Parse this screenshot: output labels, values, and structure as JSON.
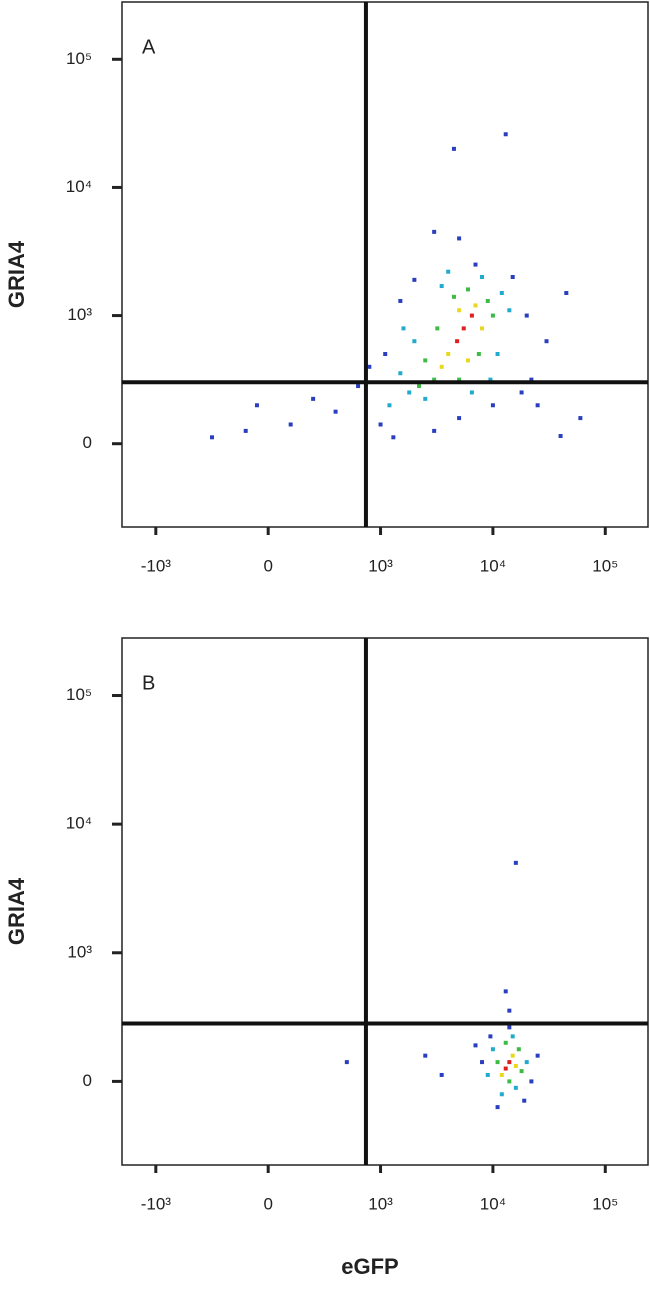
{
  "chart_data": [
    {
      "type": "scatter",
      "panel_label": "A",
      "y_label": "GRIA4",
      "xscale": "symlog",
      "yscale": "symlog",
      "xlim": [
        -2000,
        240000
      ],
      "ylim": [
        -650,
        280000
      ],
      "xticks": [
        {
          "value": -1000,
          "label": "-10³"
        },
        0,
        {
          "value": 1000,
          "label": "10³"
        },
        {
          "value": 10000,
          "label": "10⁴"
        },
        {
          "value": 100000,
          "label": "10⁵"
        }
      ],
      "yticks": [
        0,
        {
          "value": 1000,
          "label": "10³"
        },
        {
          "value": 10000,
          "label": "10⁴"
        },
        {
          "value": 100000,
          "label": "10⁵"
        }
      ],
      "gates": {
        "x": 870,
        "y": 480
      },
      "series": [
        {
          "color": "#2a3fbf",
          "x": [
            800,
            600,
            400,
            200,
            -200,
            -500,
            1000,
            1300,
            20000,
            30000,
            25000,
            60000,
            45000,
            3000,
            5000,
            4500,
            13000,
            1100,
            2000,
            7000,
            15000,
            900,
            3000,
            5000,
            10000,
            40000,
            18000,
            -100,
            1500,
            22000
          ],
          "y": [
            450,
            250,
            350,
            150,
            100,
            50,
            150,
            50,
            1000,
            800,
            300,
            200,
            1500,
            4500,
            4000,
            20000,
            26000,
            700,
            1900,
            2500,
            2000,
            600,
            100,
            200,
            300,
            60,
            400,
            300,
            1300,
            500
          ]
        },
        {
          "color": "#22aacc",
          "x": [
            1800,
            2000,
            12000,
            11000,
            1500,
            3500,
            8000,
            2500,
            14000,
            1200,
            6500,
            4000,
            1600,
            9500
          ],
          "y": [
            400,
            800,
            1500,
            700,
            550,
            1700,
            2000,
            350,
            1100,
            300,
            400,
            2200,
            900,
            500
          ]
        },
        {
          "color": "#3dbb44",
          "x": [
            3000,
            2500,
            9000,
            4500,
            3200,
            7500,
            2200,
            6000,
            10000,
            5000
          ],
          "y": [
            500,
            650,
            1300,
            1400,
            900,
            700,
            450,
            1600,
            1000,
            500
          ]
        },
        {
          "color": "#e8d820",
          "x": [
            4000,
            7000,
            5000,
            3500,
            8000,
            6000
          ],
          "y": [
            700,
            1200,
            1100,
            600,
            900,
            650
          ]
        },
        {
          "color": "#e02020",
          "x": [
            5500,
            6500,
            4800
          ],
          "y": [
            900,
            1000,
            800
          ]
        }
      ]
    },
    {
      "type": "scatter",
      "panel_label": "B",
      "y_label": "GRIA4",
      "x_label": "eGFP",
      "xscale": "symlog",
      "yscale": "symlog",
      "xlim": [
        -2000,
        240000
      ],
      "ylim": [
        -650,
        280000
      ],
      "xticks": [
        {
          "value": -1000,
          "label": "-10³"
        },
        0,
        {
          "value": 1000,
          "label": "10³"
        },
        {
          "value": 10000,
          "label": "10⁴"
        },
        {
          "value": 100000,
          "label": "10⁵"
        }
      ],
      "yticks": [
        0,
        {
          "value": 1000,
          "label": "10³"
        },
        {
          "value": 10000,
          "label": "10⁴"
        },
        {
          "value": 100000,
          "label": "10⁵"
        }
      ],
      "gates": {
        "x": 870,
        "y": 450
      },
      "series": [
        {
          "color": "#2a3fbf",
          "x": [
            8000,
            22000,
            19000,
            11000,
            9500,
            25000,
            14000,
            700,
            2500,
            3500,
            16000,
            13000,
            14000,
            7000
          ],
          "y": [
            150,
            0,
            -150,
            -200,
            350,
            200,
            420,
            150,
            200,
            50,
            5000,
            700,
            550,
            280
          ]
        },
        {
          "color": "#22aacc",
          "x": [
            10000,
            20000,
            12000,
            16000,
            9000,
            15000
          ],
          "y": [
            250,
            150,
            -100,
            -50,
            50,
            350
          ]
        },
        {
          "color": "#3dbb44",
          "x": [
            11000,
            17000,
            14000,
            13000,
            18000
          ],
          "y": [
            150,
            250,
            0,
            300,
            80
          ]
        },
        {
          "color": "#e8d820",
          "x": [
            15000,
            12000,
            16000
          ],
          "y": [
            200,
            50,
            120
          ]
        },
        {
          "color": "#e02020",
          "x": [
            14000,
            13000
          ],
          "y": [
            150,
            100
          ]
        }
      ]
    }
  ]
}
